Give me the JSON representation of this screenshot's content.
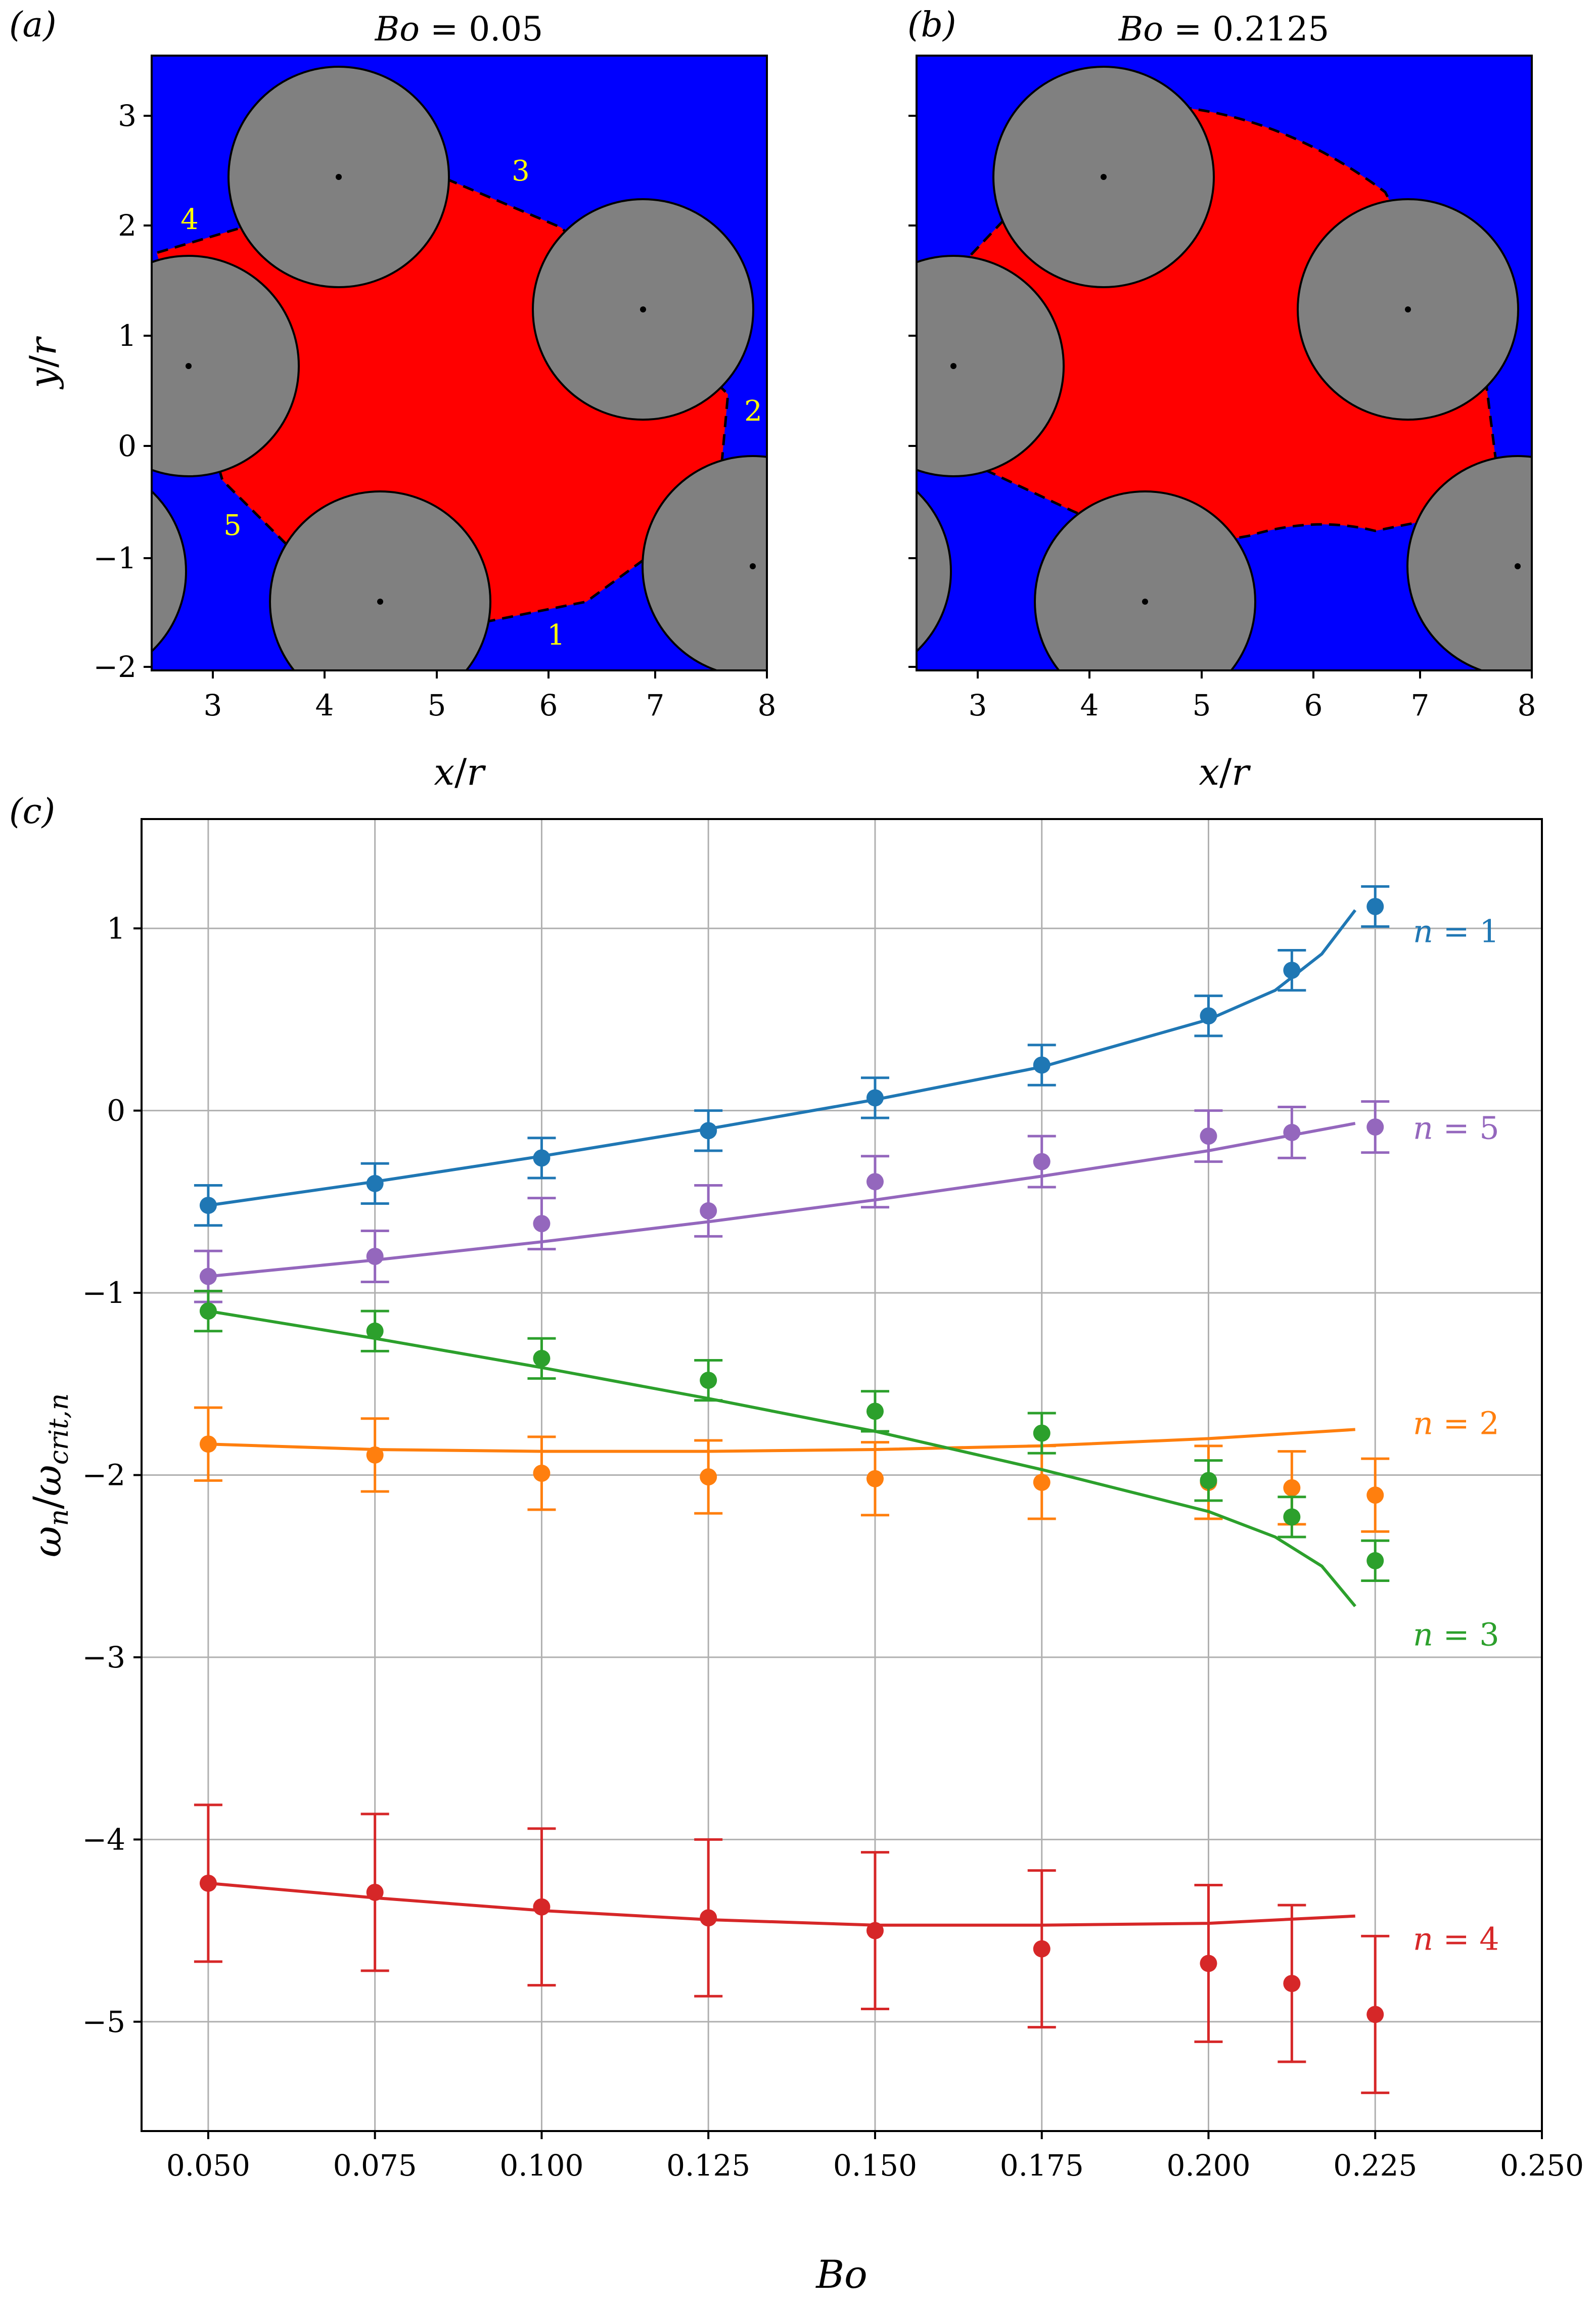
{
  "panels": {
    "a": {
      "label": "(a)",
      "title_var": "Bo",
      "title_value": " = 0.05",
      "xlabel_var": "x",
      "xlabel_unit": "r",
      "ylabel_var": "y",
      "ylabel_unit": "r",
      "xticks": [
        "3",
        "4",
        "5",
        "6",
        "7",
        "8"
      ],
      "yticks": [
        "3",
        "2",
        "1",
        "0",
        "−1",
        "−2"
      ],
      "interface_labels": [
        "1",
        "2",
        "3",
        "4",
        "5"
      ]
    },
    "b": {
      "label": "(b)",
      "title_var": "Bo",
      "title_value": " = 0.2125",
      "xlabel_var": "x",
      "xlabel_unit": "r",
      "xticks": [
        "3",
        "4",
        "5",
        "6",
        "7",
        "8"
      ],
      "yticks": [
        "3",
        "2",
        "1",
        "0",
        "−1",
        "−2"
      ]
    },
    "c": {
      "label": "(c)"
    }
  },
  "colors": {
    "invading_fluid": "#ff0000",
    "defending_fluid": "#0000ff",
    "grains": "#808080",
    "interface_labels": "#ffff00"
  },
  "chart_data": {
    "type": "scatter",
    "xlabel": "Bo",
    "ylabel": "ωn/ωcrit,n",
    "xlim": [
      0.04,
      0.25
    ],
    "ylim": [
      -5.6,
      1.6
    ],
    "xticks": [
      "0.050",
      "0.075",
      "0.100",
      "0.125",
      "0.150",
      "0.175",
      "0.200",
      "0.225",
      "0.250"
    ],
    "yticks": [
      "1",
      "0",
      "−1",
      "−2",
      "−3",
      "−4",
      "−5"
    ],
    "grid": true,
    "x": [
      0.05,
      0.075,
      0.1,
      0.125,
      0.15,
      0.175,
      0.2,
      0.2125,
      0.225
    ],
    "series": [
      {
        "name": "n = 1",
        "color": "#1f77b4",
        "values": [
          -0.52,
          -0.4,
          -0.26,
          -0.11,
          0.07,
          0.25,
          0.52,
          0.77,
          1.12
        ],
        "errors": [
          0.11,
          0.11,
          0.11,
          0.11,
          0.11,
          0.11,
          0.11,
          0.11,
          0.11
        ],
        "fit": {
          "x": [
            0.05,
            0.075,
            0.1,
            0.125,
            0.15,
            0.175,
            0.2,
            0.21,
            0.217,
            0.222
          ],
          "y": [
            -0.52,
            -0.39,
            -0.25,
            -0.1,
            0.06,
            0.24,
            0.5,
            0.66,
            0.86,
            1.1
          ]
        }
      },
      {
        "name": "n = 5",
        "color": "#9467bd",
        "values": [
          -0.91,
          -0.8,
          -0.62,
          -0.55,
          -0.39,
          -0.28,
          -0.14,
          -0.12,
          -0.09
        ],
        "errors": [
          0.14,
          0.14,
          0.14,
          0.14,
          0.14,
          0.14,
          0.14,
          0.14,
          0.14
        ],
        "fit": {
          "x": [
            0.05,
            0.075,
            0.1,
            0.125,
            0.15,
            0.175,
            0.2,
            0.222
          ],
          "y": [
            -0.91,
            -0.82,
            -0.72,
            -0.61,
            -0.49,
            -0.36,
            -0.22,
            -0.07
          ]
        }
      },
      {
        "name": "n = 2",
        "color": "#ff7f0e",
        "values": [
          -1.83,
          -1.89,
          -1.99,
          -2.01,
          -2.02,
          -2.04,
          -2.04,
          -2.07,
          -2.11
        ],
        "errors": [
          0.2,
          0.2,
          0.2,
          0.2,
          0.2,
          0.2,
          0.2,
          0.2,
          0.2
        ],
        "fit": {
          "x": [
            0.05,
            0.075,
            0.1,
            0.125,
            0.15,
            0.175,
            0.2,
            0.222
          ],
          "y": [
            -1.83,
            -1.86,
            -1.87,
            -1.87,
            -1.86,
            -1.84,
            -1.8,
            -1.75
          ]
        }
      },
      {
        "name": "n = 3",
        "color": "#2ca02c",
        "values": [
          -1.1,
          -1.21,
          -1.36,
          -1.48,
          -1.65,
          -1.77,
          -2.03,
          -2.23,
          -2.47
        ],
        "errors": [
          0.11,
          0.11,
          0.11,
          0.11,
          0.11,
          0.11,
          0.11,
          0.11,
          0.11
        ],
        "fit": {
          "x": [
            0.05,
            0.075,
            0.1,
            0.125,
            0.15,
            0.175,
            0.2,
            0.21,
            0.217,
            0.222
          ],
          "y": [
            -1.1,
            -1.25,
            -1.41,
            -1.58,
            -1.76,
            -1.97,
            -2.2,
            -2.34,
            -2.5,
            -2.72
          ]
        }
      },
      {
        "name": "n = 4",
        "color": "#d62728",
        "values": [
          -4.24,
          -4.29,
          -4.37,
          -4.43,
          -4.5,
          -4.6,
          -4.68,
          -4.79,
          -4.96
        ],
        "errors": [
          0.43,
          0.43,
          0.43,
          0.43,
          0.43,
          0.43,
          0.43,
          0.43,
          0.43
        ],
        "fit": {
          "x": [
            0.05,
            0.075,
            0.1,
            0.125,
            0.15,
            0.175,
            0.2,
            0.222
          ],
          "y": [
            -4.24,
            -4.32,
            -4.39,
            -4.44,
            -4.47,
            -4.47,
            -4.46,
            -4.42
          ]
        }
      }
    ]
  }
}
